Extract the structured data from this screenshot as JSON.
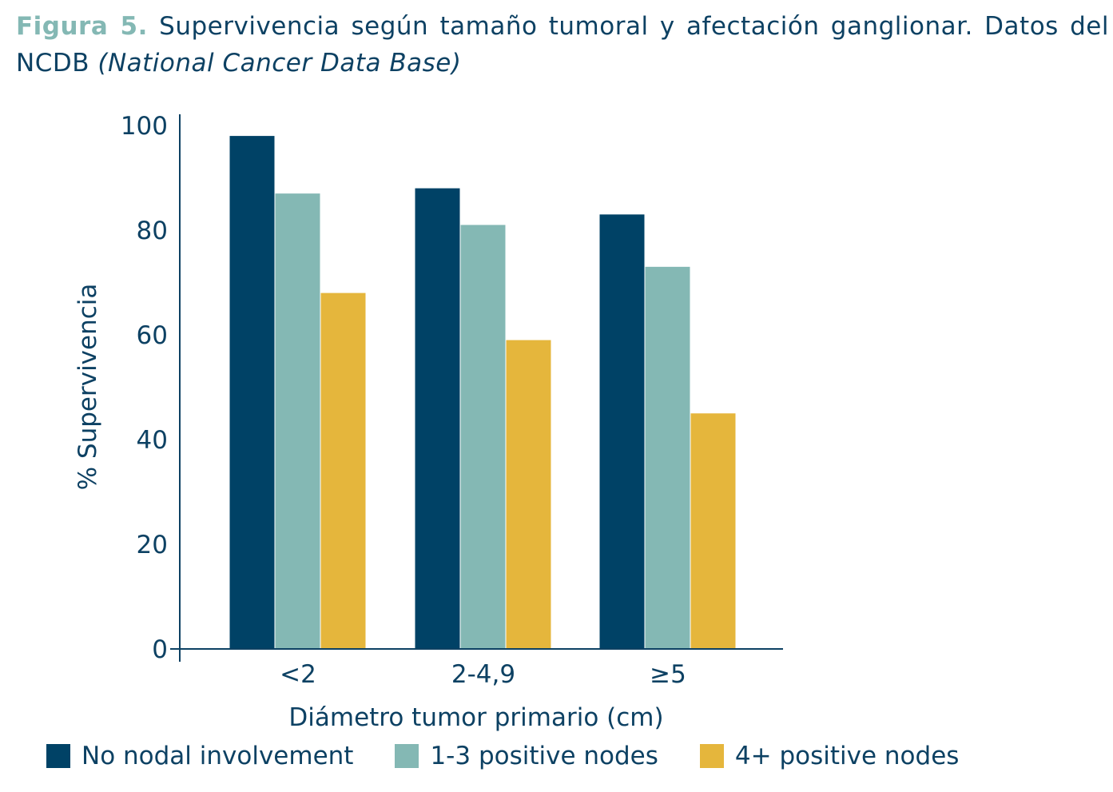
{
  "title": {
    "label": "Figura 5.",
    "text": "Supervivencia según tamaño tumoral y afectación ganglionar. Datos del NCDB",
    "italic": "(National Cancer Data Base)"
  },
  "chart_data": {
    "type": "bar",
    "categories": [
      "<2",
      "2-4,9",
      "≥5"
    ],
    "series": [
      {
        "name": "No nodal involvement",
        "color": "#004266",
        "values": [
          98,
          88,
          83
        ]
      },
      {
        "name": "1-3 positive nodes",
        "color": "#84b8b4",
        "values": [
          87,
          81,
          73
        ]
      },
      {
        "name": "4+ positive nodes",
        "color": "#e5b63c",
        "values": [
          68,
          59,
          45
        ]
      }
    ],
    "xlabel": "Diámetro tumor primario (cm)",
    "ylabel": "% Supervivencia",
    "ylim": [
      0,
      100
    ],
    "yticks": [
      0,
      20,
      40,
      60,
      80,
      100
    ],
    "grid": false,
    "legend": "bottom"
  }
}
